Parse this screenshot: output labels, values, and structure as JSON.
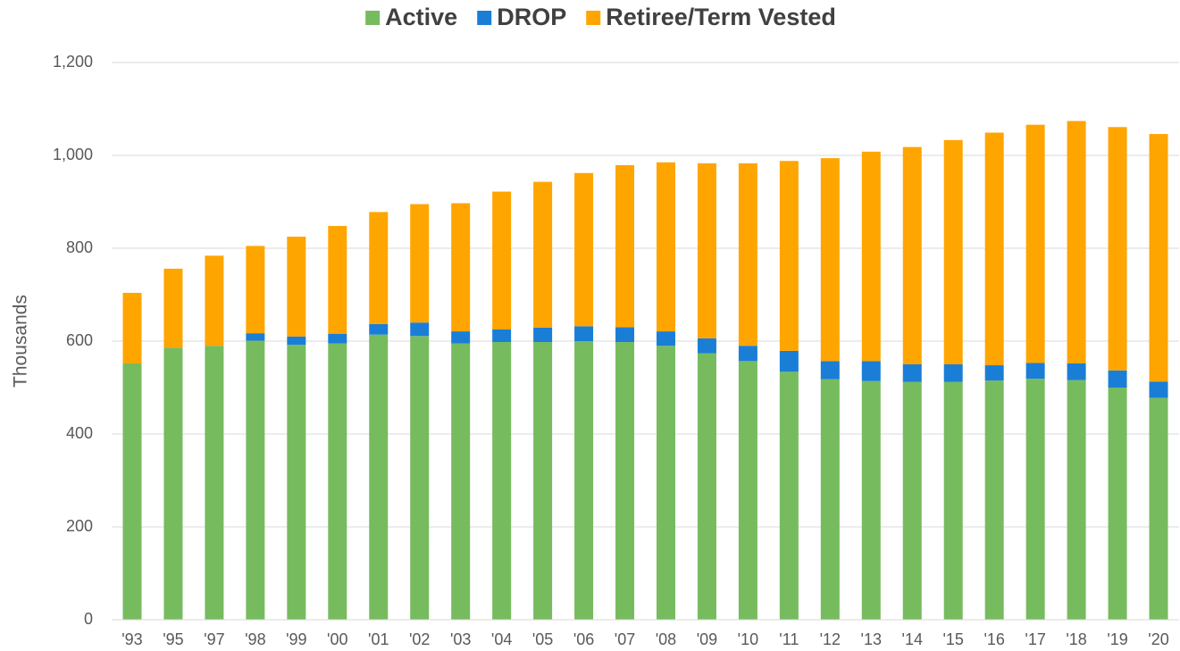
{
  "chart_data": {
    "type": "stacked_bar",
    "y_axis_label": "Thousands",
    "categories": [
      "'93",
      "'95",
      "'97",
      "'98",
      "'99",
      "'00",
      "'01",
      "'02",
      "'03",
      "'04",
      "'05",
      "'06",
      "'07",
      "'08",
      "'09",
      "'10",
      "'11",
      "'12",
      "'13",
      "'14",
      "'15",
      "'16",
      "'17",
      "'18",
      "'19",
      "'20"
    ],
    "series": [
      {
        "name": "Active",
        "color": "#77bb5f",
        "values": [
          552,
          586,
          590,
          601,
          592,
          595,
          614,
          611,
          595,
          598,
          598,
          600,
          598,
          590,
          574,
          557,
          534,
          518,
          514,
          512,
          512,
          515,
          519,
          516,
          500,
          478
        ]
      },
      {
        "name": "DROP",
        "color": "#1a7ed6",
        "values": [
          0,
          0,
          0,
          16,
          18,
          21,
          23,
          29,
          26,
          27,
          31,
          32,
          32,
          31,
          32,
          33,
          45,
          39,
          43,
          38,
          38,
          33,
          34,
          36,
          37,
          35
        ]
      },
      {
        "name": "Retiree/Term Vested",
        "color": "#ffa500",
        "values": [
          152,
          170,
          194,
          188,
          215,
          232,
          241,
          255,
          276,
          297,
          314,
          330,
          349,
          364,
          377,
          393,
          409,
          437,
          451,
          468,
          483,
          501,
          513,
          522,
          524,
          533
        ]
      }
    ],
    "ylim": [
      0,
      1200
    ],
    "yticks": [
      0,
      200,
      400,
      600,
      800,
      {
        "value": 1000,
        "label": "1,000"
      },
      {
        "value": 1200,
        "label": "1,200"
      }
    ],
    "grid": true,
    "legend": "top"
  }
}
